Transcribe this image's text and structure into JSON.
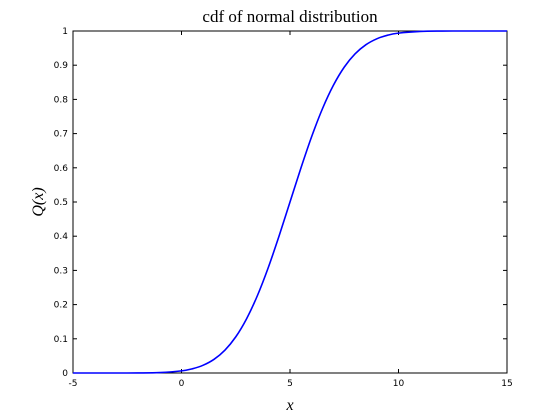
{
  "chart_data": {
    "type": "line",
    "title": "cdf of normal distribution",
    "xlabel": "x",
    "ylabel": "Q(x)",
    "xlim": [
      -5,
      15
    ],
    "ylim": [
      0,
      1
    ],
    "x_ticks": [
      -5,
      0,
      5,
      10,
      15
    ],
    "y_ticks": [
      0,
      0.1,
      0.2,
      0.3,
      0.4,
      0.5,
      0.6,
      0.7,
      0.8,
      0.9,
      1
    ],
    "x_tick_labels": [
      "-5",
      "0",
      "5",
      "10",
      "15"
    ],
    "y_tick_labels": [
      "0",
      "0.1",
      "0.2",
      "0.3",
      "0.4",
      "0.5",
      "0.6",
      "0.7",
      "0.8",
      "0.9",
      "1"
    ],
    "grid": false,
    "line_color": "#0000ff",
    "series": [
      {
        "x": [
          -5,
          -4,
          -3,
          -2,
          -1,
          0,
          0.5,
          1,
          1.5,
          2,
          2.5,
          3,
          3.5,
          4,
          4.5,
          5,
          5.5,
          6,
          6.5,
          7,
          7.5,
          8,
          8.5,
          9,
          9.5,
          10,
          11,
          12,
          13,
          14,
          15
        ],
        "values": [
          0.0,
          0.0,
          0.0,
          0.0002,
          0.0013,
          0.0062,
          0.0122,
          0.0228,
          0.0401,
          0.0668,
          0.1056,
          0.1587,
          0.2266,
          0.3085,
          0.4013,
          0.5,
          0.5987,
          0.6915,
          0.7734,
          0.8413,
          0.8944,
          0.9332,
          0.9599,
          0.9772,
          0.9878,
          0.9938,
          0.9987,
          0.9998,
          1.0,
          1.0,
          1.0
        ]
      }
    ]
  }
}
